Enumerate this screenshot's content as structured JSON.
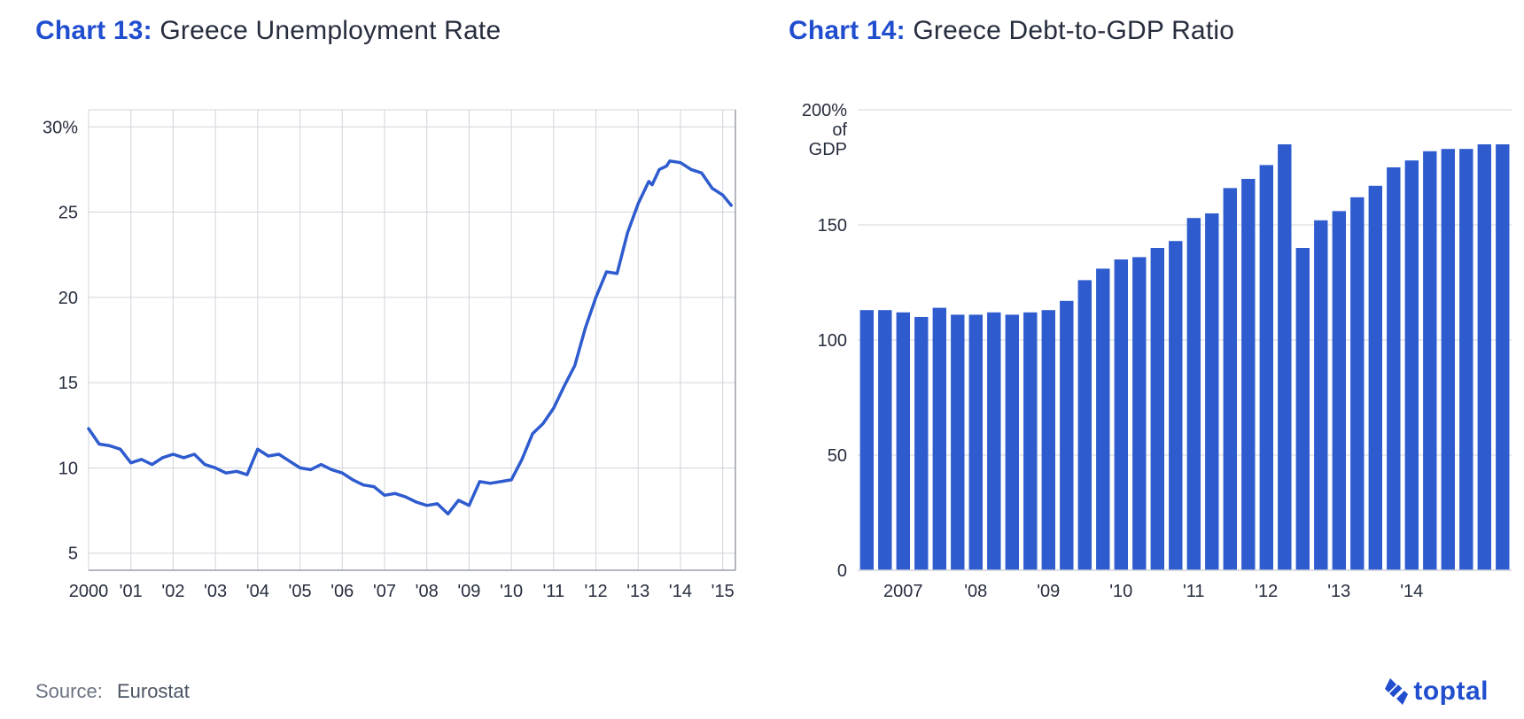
{
  "left_chart": {
    "type": "line",
    "title_num": "Chart 13:",
    "title_text": " Greece Unemployment Rate",
    "title_num_color": "#204ecf",
    "title_text_color": "#262d3d",
    "title_fontsize": 30,
    "line_color": "#2e5bce",
    "line_width": 3.5,
    "background_color": "#ffffff",
    "grid_color": "#d0d4da",
    "axis_border_color": "#9aa0a8",
    "axis_label_color": "#262d3d",
    "axis_fontsize": 20,
    "x_start": 2000.0,
    "x_end": 2015.3,
    "y_ticks": [
      5,
      10,
      15,
      20,
      25,
      30
    ],
    "y_tick_labels": [
      "5",
      "10",
      "15",
      "20",
      "25",
      "30%"
    ],
    "ylim": [
      4,
      31
    ],
    "x_tick_values": [
      2000,
      2001,
      2002,
      2003,
      2004,
      2005,
      2006,
      2007,
      2008,
      2009,
      2010,
      2011,
      2012,
      2013,
      2014,
      2015
    ],
    "x_tick_labels": [
      "2000",
      "'01",
      "'02",
      "'03",
      "'04",
      "'05",
      "'06",
      "'07",
      "'08",
      "'09",
      "'10",
      "'11",
      "'12",
      "'13",
      "'14",
      "'15"
    ],
    "points": [
      [
        2000.0,
        12.3
      ],
      [
        2000.25,
        11.4
      ],
      [
        2000.5,
        11.3
      ],
      [
        2000.75,
        11.1
      ],
      [
        2001.0,
        10.3
      ],
      [
        2001.25,
        10.5
      ],
      [
        2001.5,
        10.2
      ],
      [
        2001.75,
        10.6
      ],
      [
        2002.0,
        10.8
      ],
      [
        2002.25,
        10.6
      ],
      [
        2002.5,
        10.8
      ],
      [
        2002.75,
        10.2
      ],
      [
        2003.0,
        10.0
      ],
      [
        2003.25,
        9.7
      ],
      [
        2003.5,
        9.8
      ],
      [
        2003.75,
        9.6
      ],
      [
        2004.0,
        11.1
      ],
      [
        2004.25,
        10.7
      ],
      [
        2004.5,
        10.8
      ],
      [
        2004.75,
        10.4
      ],
      [
        2005.0,
        10.0
      ],
      [
        2005.25,
        9.9
      ],
      [
        2005.5,
        10.2
      ],
      [
        2005.75,
        9.9
      ],
      [
        2006.0,
        9.7
      ],
      [
        2006.25,
        9.3
      ],
      [
        2006.5,
        9.0
      ],
      [
        2006.75,
        8.9
      ],
      [
        2007.0,
        8.4
      ],
      [
        2007.25,
        8.5
      ],
      [
        2007.5,
        8.3
      ],
      [
        2007.75,
        8.0
      ],
      [
        2008.0,
        7.8
      ],
      [
        2008.25,
        7.9
      ],
      [
        2008.5,
        7.3
      ],
      [
        2008.75,
        8.1
      ],
      [
        2009.0,
        7.8
      ],
      [
        2009.25,
        9.2
      ],
      [
        2009.5,
        9.1
      ],
      [
        2009.75,
        9.2
      ],
      [
        2010.0,
        9.3
      ],
      [
        2010.25,
        10.5
      ],
      [
        2010.5,
        12.0
      ],
      [
        2010.75,
        12.6
      ],
      [
        2011.0,
        13.5
      ],
      [
        2011.25,
        14.8
      ],
      [
        2011.5,
        16.0
      ],
      [
        2011.75,
        18.2
      ],
      [
        2012.0,
        20.0
      ],
      [
        2012.25,
        21.5
      ],
      [
        2012.5,
        21.4
      ],
      [
        2012.75,
        23.8
      ],
      [
        2013.0,
        25.5
      ],
      [
        2013.25,
        26.8
      ],
      [
        2013.33,
        26.6
      ],
      [
        2013.5,
        27.5
      ],
      [
        2013.67,
        27.7
      ],
      [
        2013.75,
        28.0
      ],
      [
        2014.0,
        27.9
      ],
      [
        2014.25,
        27.5
      ],
      [
        2014.5,
        27.3
      ],
      [
        2014.75,
        26.4
      ],
      [
        2015.0,
        26.0
      ],
      [
        2015.2,
        25.4
      ]
    ]
  },
  "right_chart": {
    "type": "bar",
    "title_num": "Chart 14:",
    "title_text": " Greece Debt-to-GDP Ratio",
    "title_num_color": "#204ecf",
    "title_text_color": "#262d3d",
    "title_fontsize": 30,
    "bar_color": "#2e5bce",
    "background_color": "#ffffff",
    "grid_color": "#d0d4da",
    "axis_label_color": "#262d3d",
    "axis_fontsize": 20,
    "ylim": [
      0,
      200
    ],
    "y_ticks": [
      0,
      50,
      100,
      150,
      200
    ],
    "y_tick_labels": [
      "0",
      "50",
      "100",
      "150",
      "200%\nof\nGDP"
    ],
    "x_labels_at": {
      "2": "2007",
      "6": "'08",
      "10": "'09",
      "14": "'10",
      "18": "'11",
      "22": "'12",
      "26": "'13",
      "30": "'14"
    },
    "bar_gap_ratio": 0.25,
    "values": [
      113,
      113,
      112,
      110,
      114,
      111,
      111,
      112,
      111,
      112,
      113,
      117,
      126,
      131,
      135,
      136,
      140,
      143,
      153,
      155,
      166,
      170,
      176,
      185,
      140,
      152,
      156,
      162,
      167,
      175,
      178,
      182,
      183,
      183,
      185,
      185
    ]
  },
  "source": {
    "label": "Source:",
    "value": "Eurostat",
    "fontsize": 22
  },
  "brand": {
    "text": "toptal",
    "color": "#204ecf"
  }
}
